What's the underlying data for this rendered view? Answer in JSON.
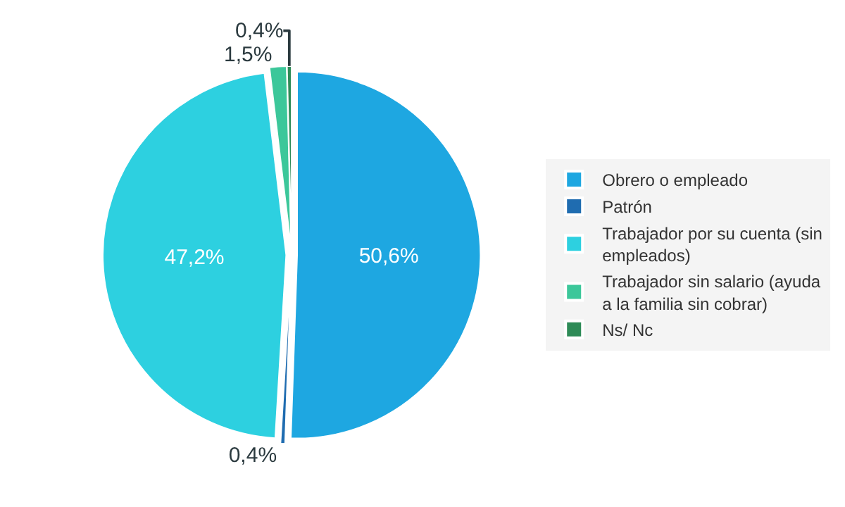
{
  "chart_data": {
    "type": "pie",
    "categories": [
      "Obrero o empleado",
      "Patrón",
      "Trabajador por su cuenta (sin empleados)",
      "Trabajador sin salario (ayuda a la familia sin cobrar)",
      "Ns/ Nc"
    ],
    "values": [
      50.6,
      0.4,
      47.2,
      1.5,
      0.4
    ],
    "value_labels": [
      "50,6%",
      "0,4%",
      "47,2%",
      "1,5%",
      "0,4%"
    ],
    "colors": [
      "#1ea7e1",
      "#1f6cb0",
      "#2dd0e0",
      "#3cc79a",
      "#2e8b57"
    ],
    "legend": "right"
  }
}
